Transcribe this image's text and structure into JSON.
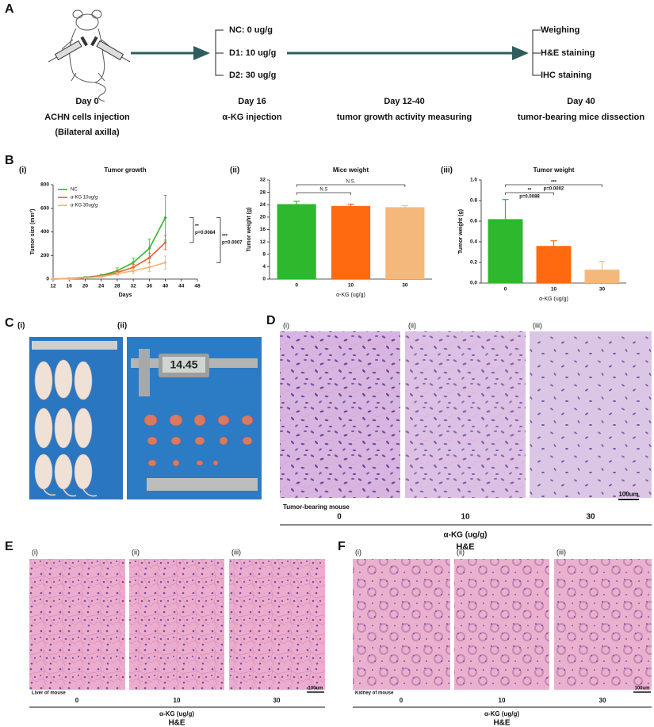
{
  "panel_labels": [
    "A",
    "B",
    "C",
    "D",
    "E",
    "F"
  ],
  "panel_a": {
    "groups": [
      "NC: 0 ug/g",
      "D1: 10 ug/g",
      "D2: 30 ug/g"
    ],
    "outcomes": [
      "Weighing",
      "H&E staining",
      "IHC staining"
    ],
    "timeline": [
      {
        "day": "Day 0",
        "lines": [
          "ACHN cells injection",
          "(Bilateral axilla)"
        ]
      },
      {
        "day": "Day 16",
        "lines": [
          "α-KG injection"
        ]
      },
      {
        "day": "Day 12-40",
        "lines": [
          "tumor growth activity measuring"
        ]
      },
      {
        "day": "Day 40",
        "lines": [
          "tumor-bearing mice dissection"
        ]
      }
    ]
  },
  "panel_b": {
    "sublabels": [
      "(i)",
      "(ii)",
      "(iii)"
    ]
  },
  "chart_data": [
    {
      "type": "line",
      "title": "Tumor growth",
      "x_label": "Days",
      "y_label": "Tumor size (mm³)",
      "x": [
        12,
        16,
        20,
        24,
        28,
        32,
        36,
        40
      ],
      "xlim": [
        12,
        48
      ],
      "xticks": [
        12,
        16,
        20,
        24,
        28,
        32,
        36,
        40,
        44,
        48
      ],
      "ylim": [
        0,
        800
      ],
      "yticks": [
        0,
        200,
        400,
        600,
        800
      ],
      "series": [
        {
          "name": "NC",
          "color": "#2db82d",
          "values": [
            0,
            5,
            15,
            30,
            70,
            140,
            260,
            520
          ],
          "errors": [
            0,
            2,
            5,
            10,
            25,
            40,
            80,
            190
          ]
        },
        {
          "name": "α-KG 10ug/g",
          "color": "#e8622a",
          "values": [
            0,
            4,
            12,
            25,
            55,
            100,
            180,
            310
          ],
          "errors": [
            0,
            2,
            4,
            8,
            15,
            25,
            40,
            60
          ]
        },
        {
          "name": "α-KG 30ug/g",
          "color": "#f0b27a",
          "values": [
            0,
            3,
            10,
            20,
            45,
            70,
            100,
            140
          ],
          "errors": [
            0,
            1,
            3,
            6,
            10,
            20,
            35,
            55
          ]
        }
      ],
      "significance": [
        {
          "stars": "**",
          "p": "p=0.0084"
        },
        {
          "stars": "***",
          "p": "p=0.0007"
        }
      ]
    },
    {
      "type": "bar",
      "title": "Mice weight",
      "x_label": "α-KG (ug/g)",
      "y_label": "Tumor weight (g)",
      "categories": [
        "0",
        "10",
        "30"
      ],
      "values": [
        24.2,
        23.6,
        23.2
      ],
      "errors": [
        0.9,
        0.6,
        0.5
      ],
      "colors": [
        "#2db82d",
        "#ff6a10",
        "#f4b97a"
      ],
      "ylim": [
        0,
        32
      ],
      "yticks": [
        0,
        4,
        8,
        12,
        16,
        20,
        24,
        28,
        32
      ],
      "significance": [
        "N.S",
        "N.S."
      ]
    },
    {
      "type": "bar",
      "title": "Tumor weight",
      "x_label": "α-KG (ug/g)",
      "y_label": "Tumor weight (g)",
      "categories": [
        "0",
        "10",
        "30"
      ],
      "values": [
        0.62,
        0.36,
        0.13
      ],
      "errors": [
        0.19,
        0.05,
        0.08
      ],
      "colors": [
        "#2db82d",
        "#ff6a10",
        "#f4b97a"
      ],
      "ylim": [
        0,
        1
      ],
      "yticks": [
        {
          "value": 0,
          "label": "0.0"
        },
        0.2,
        0.4,
        0.6,
        0.8,
        {
          "value": 1,
          "label": "1.0"
        }
      ],
      "significance": [
        {
          "stars": "**",
          "p": "p=0.0088"
        },
        {
          "stars": "***",
          "p": "p=0.0002"
        }
      ]
    }
  ],
  "panel_c": {
    "sublabels": [
      "(i)",
      "(ii)"
    ],
    "caliper": "14.45"
  },
  "panel_d": {
    "sublabels": [
      "(i)",
      "(ii)",
      "(iii)"
    ],
    "caption": "Tumor-bearing mouse",
    "doses": [
      "0",
      "10",
      "30"
    ],
    "scale": "100um",
    "axis_label": "α-KG (ug/g)",
    "stain": "H&E"
  },
  "panel_e": {
    "sublabels": [
      "(i)",
      "(ii)",
      "(iii)"
    ],
    "caption": "Liver of mouse",
    "doses": [
      "0",
      "10",
      "30"
    ],
    "scale": "100um",
    "axis_label": "α-KG (ug/g)",
    "stain": "H&E"
  },
  "panel_f": {
    "sublabels": [
      "(i)",
      "(ii)",
      "(iii)"
    ],
    "caption": "Kidney of mouse",
    "doses": [
      "0",
      "10",
      "30"
    ],
    "scale": "100um",
    "axis_label": "α-KG (ug/g)",
    "stain": "H&E"
  }
}
